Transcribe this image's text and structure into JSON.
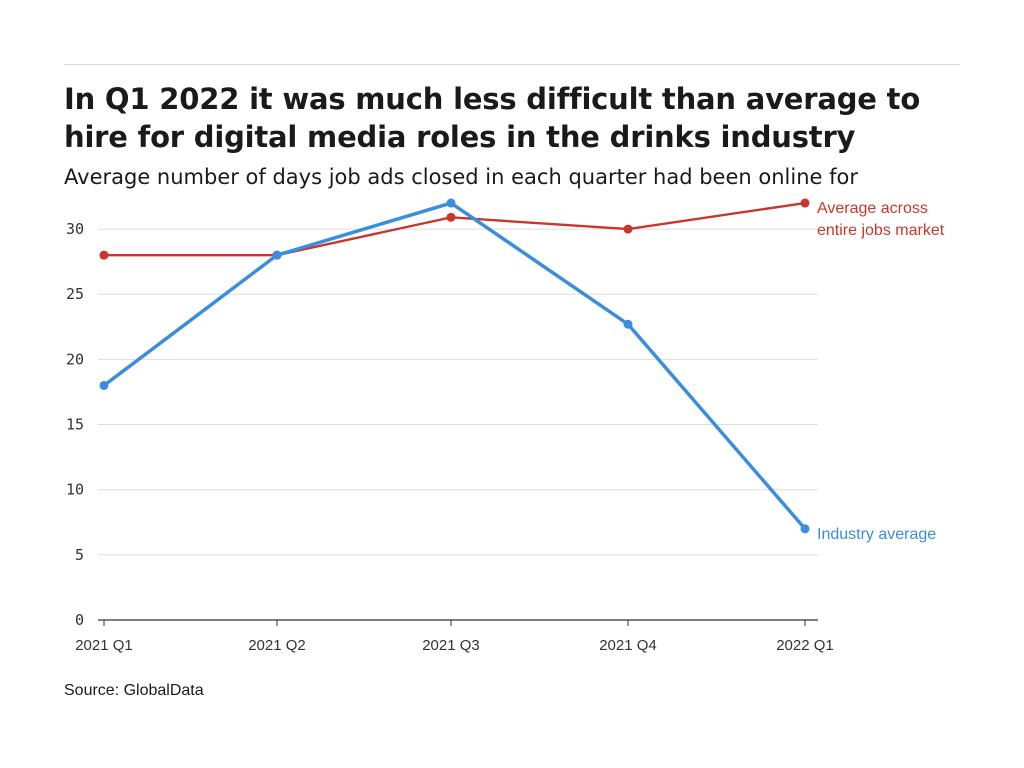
{
  "header": {
    "title": "In Q1 2022 it was much less difficult than average to hire for digital media roles in the drinks industry",
    "subtitle": "Average number of days job ads closed in each quarter had been online for"
  },
  "footer": {
    "source": "Source: GlobalData"
  },
  "colors": {
    "industry": "#3b8ddd",
    "market": "#c8372d",
    "grid": "#dddddd",
    "axis": "#333333"
  },
  "chart_data": {
    "type": "line",
    "categories": [
      "2021 Q1",
      "2021 Q2",
      "2021 Q3",
      "2021 Q4",
      "2022 Q1"
    ],
    "ylim": [
      0,
      33
    ],
    "yticks": [
      0,
      5,
      10,
      15,
      20,
      25,
      30
    ],
    "grid": true,
    "legend": "direct labels at line ends",
    "series": [
      {
        "name": "Average across entire jobs market",
        "label_lines": [
          "Average across",
          "entire jobs market"
        ],
        "values": [
          28,
          28,
          30.9,
          30,
          32
        ],
        "color": "#c8372d"
      },
      {
        "name": "Industry average",
        "label_lines": [
          "Industry average"
        ],
        "values": [
          18,
          28,
          32,
          22.7,
          7
        ],
        "color": "#3b8ddd"
      }
    ]
  }
}
